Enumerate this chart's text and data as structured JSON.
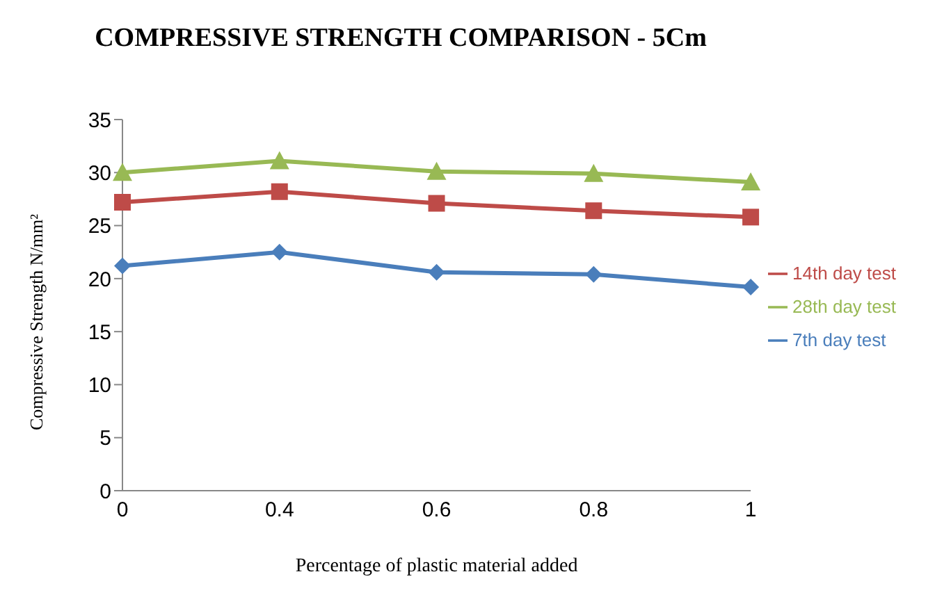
{
  "chart_data": {
    "type": "line",
    "title": "COMPRESSIVE STRENGTH COMPARISON - 5Cm",
    "xlabel": "Percentage of plastic material added",
    "ylabel": "Compressive Strength N/mm²",
    "categories": [
      "0",
      "0.4",
      "0.6",
      "0.8",
      "1"
    ],
    "series": [
      {
        "name": "7th day test",
        "color": "#4a7ebb",
        "marker": "diamond",
        "values": [
          21.2,
          22.5,
          20.6,
          20.4,
          19.2
        ]
      },
      {
        "name": "14th day test",
        "color": "#be4b48",
        "marker": "square",
        "values": [
          27.2,
          28.2,
          27.1,
          26.4,
          25.8
        ]
      },
      {
        "name": "28th day test",
        "color": "#98b954",
        "marker": "triangle",
        "values": [
          30.0,
          31.1,
          30.1,
          29.9,
          29.1
        ]
      }
    ],
    "ylim": [
      0,
      35
    ],
    "yticks": [
      0,
      5,
      10,
      15,
      20,
      25,
      30,
      35
    ],
    "grid": false,
    "legend": "right"
  }
}
